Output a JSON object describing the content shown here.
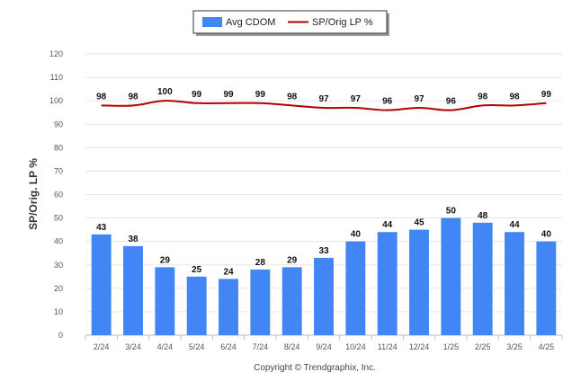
{
  "chart_data": {
    "type": "bar",
    "categories": [
      "2/24",
      "3/24",
      "4/24",
      "5/24",
      "6/24",
      "7/24",
      "8/24",
      "9/24",
      "10/24",
      "11/24",
      "12/24",
      "1/25",
      "2/25",
      "3/25",
      "4/25"
    ],
    "series": [
      {
        "name": "Avg CDOM",
        "type": "bar",
        "color": "#4285F4",
        "values": [
          43,
          38,
          29,
          25,
          24,
          28,
          29,
          33,
          40,
          44,
          45,
          50,
          48,
          44,
          40
        ]
      },
      {
        "name": "SP/Orig LP %",
        "type": "line",
        "color": "#B30000",
        "values": [
          98,
          98,
          100,
          99,
          99,
          99,
          98,
          97,
          97,
          96,
          97,
          96,
          98,
          98,
          99
        ]
      }
    ],
    "ylabel": "SP/Orig. LP %",
    "ylim": [
      0,
      120
    ],
    "yticks": [
      0,
      10,
      20,
      30,
      40,
      50,
      60,
      70,
      80,
      90,
      100,
      110,
      120
    ],
    "grid": true,
    "legend_position": "top-center"
  },
  "footer": {
    "copyright": "Copyright © Trendgraphix, Inc."
  }
}
